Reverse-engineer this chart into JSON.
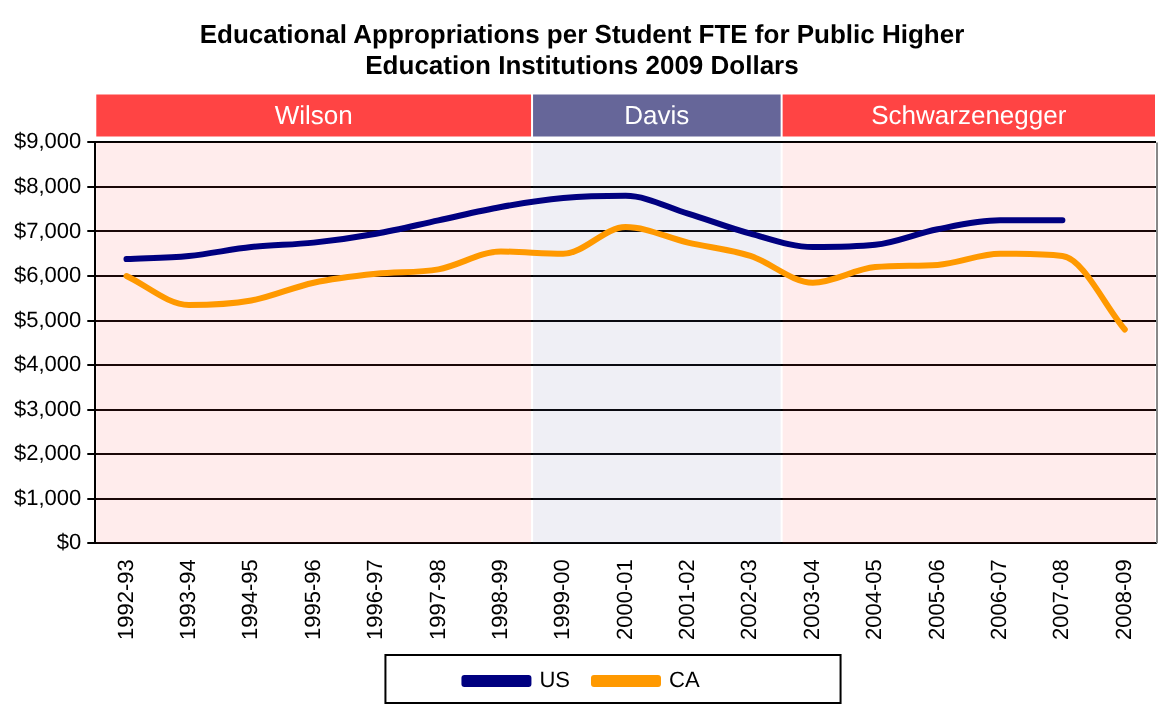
{
  "chart_data": {
    "type": "line",
    "title": "Educational Appropriations per Student FTE for Public Higher Education Institutions 2009 Dollars",
    "categories": [
      "1992-93",
      "1993-94",
      "1994-95",
      "1995-96",
      "1996-97",
      "1997-98",
      "1998-99",
      "1999-00",
      "2000-01",
      "2001-02",
      "2002-03",
      "2003-04",
      "2004-05",
      "2005-06",
      "2006-07",
      "2007-08",
      "2008-09"
    ],
    "series": [
      {
        "name": "US",
        "color": "#000080",
        "values": [
          6380,
          6450,
          6650,
          6750,
          6950,
          7250,
          7550,
          7750,
          7800,
          7400,
          6950,
          6650,
          6700,
          7050,
          7250,
          7250,
          null
        ]
      },
      {
        "name": "CA",
        "color": "#ff9900",
        "values": [
          6000,
          5350,
          5450,
          5850,
          6050,
          6150,
          6550,
          6500,
          7100,
          6750,
          6450,
          5850,
          6200,
          6250,
          6500,
          6450,
          4800
        ]
      }
    ],
    "ylim": [
      0,
      9000
    ],
    "yticks": [
      {
        "value": 0,
        "label": "$0"
      },
      {
        "value": 1000,
        "label": "$1,000"
      },
      {
        "value": 2000,
        "label": "$2,000"
      },
      {
        "value": 3000,
        "label": "$3,000"
      },
      {
        "value": 4000,
        "label": "$4,000"
      },
      {
        "value": 5000,
        "label": "$5,000"
      },
      {
        "value": 6000,
        "label": "$6,000"
      },
      {
        "value": 7000,
        "label": "$7,000"
      },
      {
        "value": 8000,
        "label": "$8,000"
      },
      {
        "value": 9000,
        "label": "$9,000"
      }
    ],
    "bands": [
      {
        "axis": "x",
        "from": "1992-93",
        "to": "1998-99",
        "label": "Wilson",
        "color": "#ff4444"
      },
      {
        "axis": "x",
        "from": "1999-00",
        "to": "2002-03",
        "label": "Davis",
        "color": "#666699"
      },
      {
        "axis": "x",
        "from": "2003-04",
        "to": "2008-09",
        "label": "Schwarzenegger",
        "color": "#ff4444"
      }
    ],
    "grid": "y",
    "legend": "bottom",
    "marker": "none",
    "line_style": "solid"
  }
}
